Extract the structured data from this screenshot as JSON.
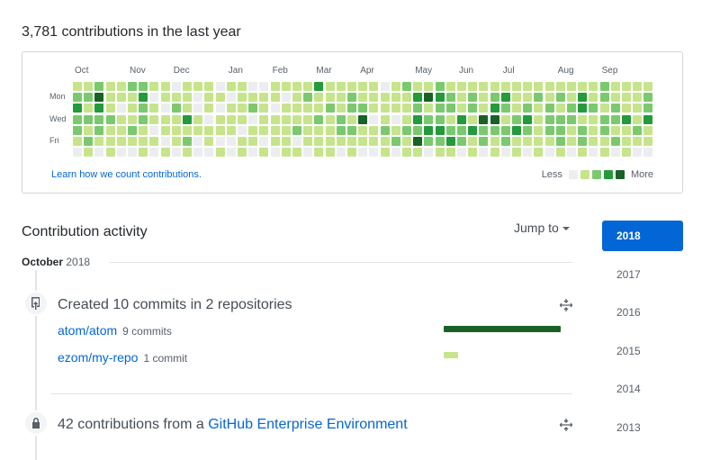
{
  "header": {
    "contributions_summary": "3,781 contributions in the last year"
  },
  "calendar": {
    "months": [
      "Oct",
      "Nov",
      "Dec",
      "Jan",
      "Feb",
      "Mar",
      "Apr",
      "May",
      "Jun",
      "Jul",
      "Aug",
      "Sep"
    ],
    "month_week_index": [
      0,
      5,
      9,
      14,
      18,
      22,
      26,
      31,
      35,
      39,
      44,
      48
    ],
    "day_labels": [
      "Mon",
      "Wed",
      "Fri"
    ],
    "day_label_rows": [
      1,
      3,
      5
    ],
    "levels_colors": [
      "#ebedf0",
      "#c6e48b",
      "#7bc96f",
      "#239a3b",
      "#196127"
    ],
    "weeks": [
      [
        1,
        2,
        3,
        2,
        2,
        1,
        0
      ],
      [
        1,
        2,
        1,
        2,
        1,
        2,
        1
      ],
      [
        2,
        4,
        3,
        2,
        2,
        1,
        0
      ],
      [
        1,
        1,
        1,
        2,
        1,
        1,
        1
      ],
      [
        1,
        1,
        0,
        1,
        1,
        1,
        0
      ],
      [
        2,
        1,
        1,
        1,
        2,
        1,
        0
      ],
      [
        2,
        3,
        2,
        2,
        1,
        1,
        1
      ],
      [
        1,
        0,
        1,
        1,
        0,
        1,
        0
      ],
      [
        1,
        1,
        0,
        1,
        1,
        0,
        1
      ],
      [
        0,
        1,
        2,
        1,
        1,
        1,
        0
      ],
      [
        1,
        1,
        1,
        3,
        1,
        2,
        1
      ],
      [
        1,
        0,
        0,
        1,
        1,
        0,
        0
      ],
      [
        1,
        1,
        1,
        0,
        1,
        1,
        0
      ],
      [
        0,
        1,
        0,
        1,
        1,
        0,
        1
      ],
      [
        1,
        0,
        1,
        1,
        1,
        0,
        0
      ],
      [
        1,
        1,
        1,
        1,
        0,
        1,
        1
      ],
      [
        0,
        1,
        2,
        0,
        1,
        1,
        0
      ],
      [
        0,
        1,
        1,
        1,
        1,
        0,
        1
      ],
      [
        1,
        1,
        0,
        1,
        1,
        1,
        0
      ],
      [
        1,
        0,
        1,
        1,
        1,
        1,
        1
      ],
      [
        1,
        1,
        1,
        1,
        2,
        0,
        1
      ],
      [
        1,
        2,
        1,
        1,
        1,
        1,
        0
      ],
      [
        3,
        1,
        1,
        2,
        1,
        1,
        1
      ],
      [
        1,
        1,
        2,
        1,
        1,
        1,
        1
      ],
      [
        1,
        1,
        1,
        2,
        2,
        1,
        0
      ],
      [
        1,
        2,
        2,
        1,
        2,
        1,
        1
      ],
      [
        1,
        1,
        2,
        4,
        1,
        1,
        0
      ],
      [
        1,
        1,
        1,
        0,
        1,
        1,
        0
      ],
      [
        0,
        1,
        1,
        1,
        2,
        1,
        1
      ],
      [
        1,
        1,
        1,
        0,
        1,
        2,
        0
      ],
      [
        2,
        1,
        1,
        1,
        2,
        1,
        1
      ],
      [
        1,
        3,
        2,
        3,
        2,
        4,
        1
      ],
      [
        1,
        4,
        1,
        2,
        3,
        2,
        0
      ],
      [
        2,
        3,
        2,
        2,
        3,
        2,
        1
      ],
      [
        1,
        2,
        2,
        1,
        2,
        3,
        1
      ],
      [
        1,
        1,
        1,
        3,
        2,
        2,
        0
      ],
      [
        1,
        2,
        2,
        1,
        3,
        1,
        1
      ],
      [
        1,
        1,
        1,
        4,
        2,
        2,
        0
      ],
      [
        1,
        2,
        3,
        4,
        2,
        1,
        1
      ],
      [
        1,
        3,
        2,
        1,
        2,
        2,
        0
      ],
      [
        1,
        1,
        1,
        2,
        3,
        1,
        1
      ],
      [
        1,
        1,
        2,
        3,
        2,
        1,
        0
      ],
      [
        1,
        2,
        1,
        1,
        1,
        1,
        1
      ],
      [
        1,
        1,
        2,
        2,
        2,
        1,
        0
      ],
      [
        1,
        2,
        1,
        2,
        2,
        2,
        1
      ],
      [
        1,
        1,
        2,
        2,
        1,
        1,
        0
      ],
      [
        1,
        3,
        3,
        1,
        2,
        2,
        1
      ],
      [
        1,
        1,
        2,
        1,
        1,
        1,
        0
      ],
      [
        2,
        2,
        1,
        2,
        2,
        1,
        1
      ],
      [
        1,
        1,
        2,
        2,
        1,
        2,
        0
      ],
      [
        1,
        1,
        1,
        3,
        1,
        1,
        1
      ],
      [
        1,
        1,
        1,
        1,
        2,
        1,
        0
      ],
      [
        1,
        2,
        2,
        3,
        1,
        1,
        0
      ]
    ],
    "learn_link": "Learn how we count contributions.",
    "legend_less": "Less",
    "legend_more": "More"
  },
  "activity": {
    "title": "Contribution activity",
    "jump_to": "Jump to",
    "month": "October",
    "year": "2018",
    "commits_item": {
      "title": "Created 10 commits in 2 repositories",
      "repos": [
        {
          "name": "atom/atom",
          "count": "9 commits",
          "fraction": 1.0,
          "color": "#196127"
        },
        {
          "name": "ezom/my-repo",
          "count": "1 commit",
          "fraction": 0.12,
          "color": "#c6e48b"
        }
      ]
    },
    "enterprise_item": {
      "title_prefix": "42 contributions from a",
      "title_link": "GitHub Enterprise Environment"
    }
  },
  "years": {
    "items": [
      "2018",
      "2017",
      "2016",
      "2015",
      "2014",
      "2013"
    ],
    "selected": "2018"
  },
  "icons": {
    "commit": "repo-push-icon",
    "lock": "lock-icon",
    "fold": "fold-icon"
  }
}
